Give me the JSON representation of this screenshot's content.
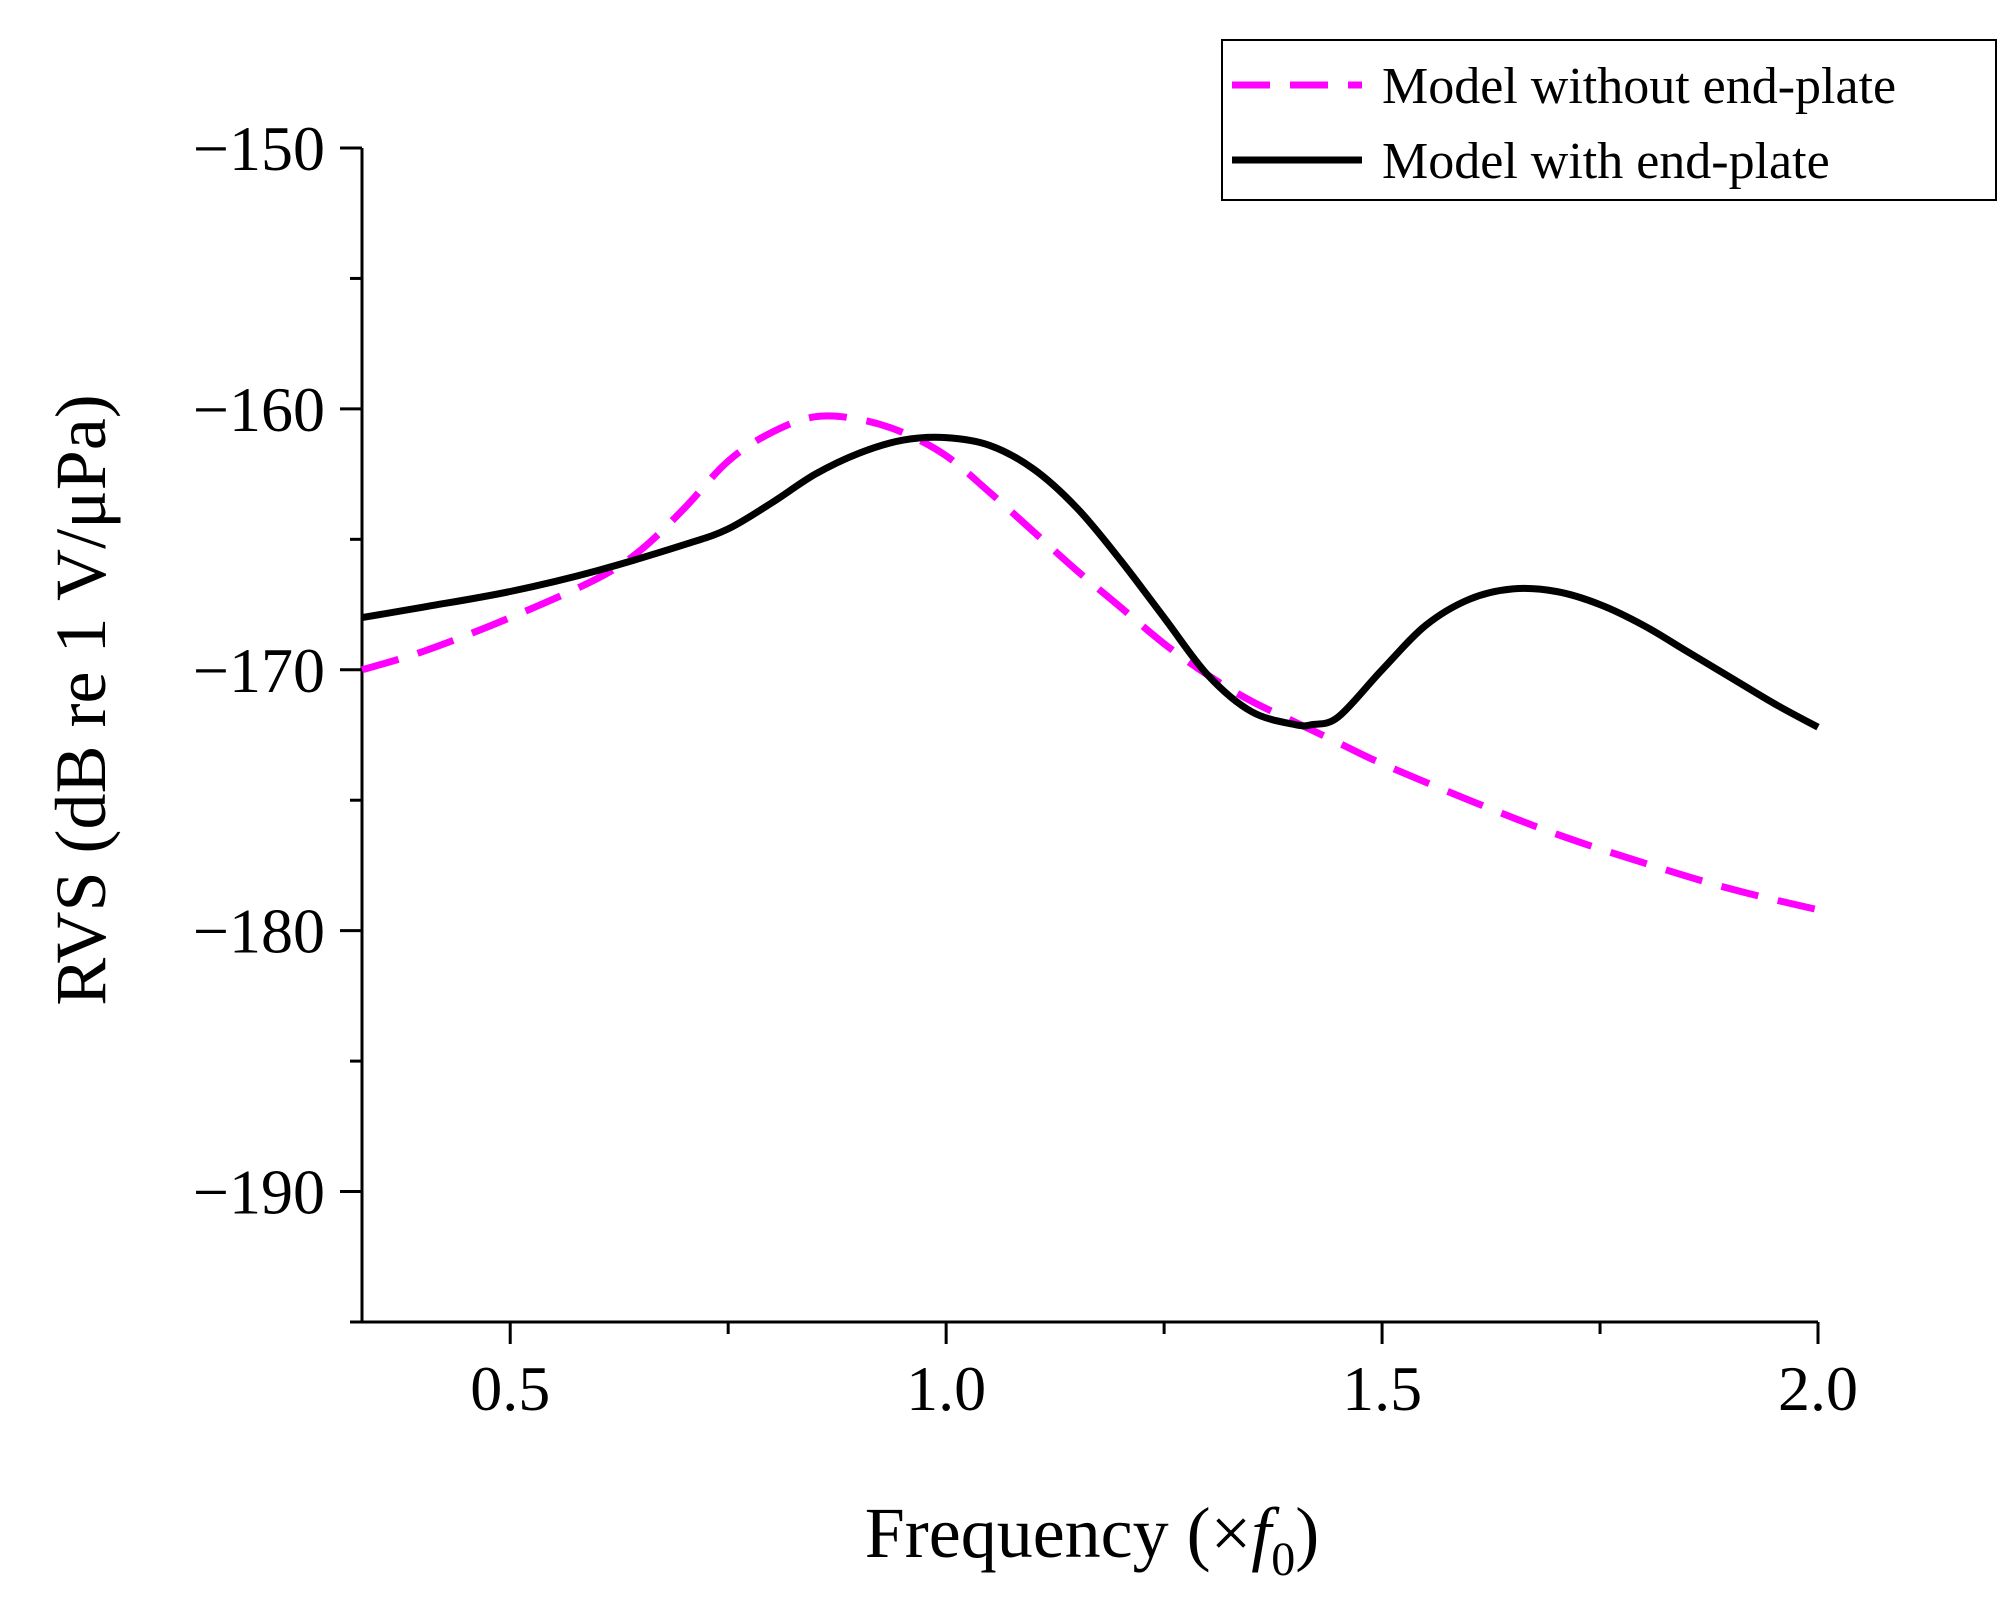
{
  "chart_data": {
    "type": "line",
    "title": "",
    "xlabel": "Frequency (×f0)",
    "xlabel_parts": {
      "main": "Frequency (×",
      "var": "f",
      "sub": "0",
      "close": ")"
    },
    "ylabel": "RVS (dB re 1 V/μPa)",
    "xlim": [
      0.33,
      2.0
    ],
    "ylim": [
      -195,
      -150
    ],
    "x_ticks": [
      0.5,
      1.0,
      1.5,
      2.0
    ],
    "x_tick_labels": [
      "0.5",
      "1.0",
      "1.5",
      "2.0"
    ],
    "x_minor_ticks": [
      0.75,
      1.25,
      1.75
    ],
    "y_ticks": [
      -150,
      -160,
      -170,
      -180,
      -190
    ],
    "y_tick_labels": [
      "−150",
      "−160",
      "−170",
      "−180",
      "−190"
    ],
    "y_minor_ticks": [
      -155,
      -165,
      -175,
      -185,
      -195
    ],
    "grid": false,
    "legend_position": "top-right",
    "series": [
      {
        "name": "Model without end-plate",
        "color": "#ff00ff",
        "style": "dashed",
        "x": [
          0.33,
          0.4,
          0.5,
          0.6,
          0.65,
          0.7,
          0.75,
          0.8,
          0.85,
          0.9,
          0.95,
          1.0,
          1.05,
          1.1,
          1.15,
          1.2,
          1.25,
          1.3,
          1.35,
          1.4,
          1.45,
          1.5,
          1.6,
          1.7,
          1.8,
          1.9,
          2.0
        ],
        "y": [
          -170.0,
          -169.3,
          -168.0,
          -166.5,
          -165.4,
          -163.8,
          -162.0,
          -160.9,
          -160.3,
          -160.4,
          -160.9,
          -161.8,
          -163.2,
          -164.7,
          -166.2,
          -167.6,
          -169.0,
          -170.2,
          -171.2,
          -172.0,
          -172.8,
          -173.6,
          -175.0,
          -176.3,
          -177.4,
          -178.4,
          -179.2
        ]
      },
      {
        "name": "Model with end-plate",
        "color": "#000000",
        "style": "solid",
        "x": [
          0.33,
          0.4,
          0.5,
          0.6,
          0.7,
          0.75,
          0.8,
          0.85,
          0.9,
          0.95,
          1.0,
          1.05,
          1.1,
          1.15,
          1.2,
          1.25,
          1.3,
          1.35,
          1.4,
          1.42,
          1.45,
          1.5,
          1.55,
          1.6,
          1.65,
          1.7,
          1.75,
          1.8,
          1.85,
          1.9,
          1.95,
          2.0
        ],
        "y": [
          -168.0,
          -167.6,
          -167.0,
          -166.2,
          -165.2,
          -164.6,
          -163.6,
          -162.5,
          -161.7,
          -161.2,
          -161.1,
          -161.4,
          -162.3,
          -163.8,
          -165.8,
          -168.0,
          -170.2,
          -171.6,
          -172.1,
          -172.1,
          -171.8,
          -170.0,
          -168.3,
          -167.3,
          -166.9,
          -167.0,
          -167.5,
          -168.3,
          -169.3,
          -170.3,
          -171.3,
          -172.2
        ]
      }
    ]
  }
}
